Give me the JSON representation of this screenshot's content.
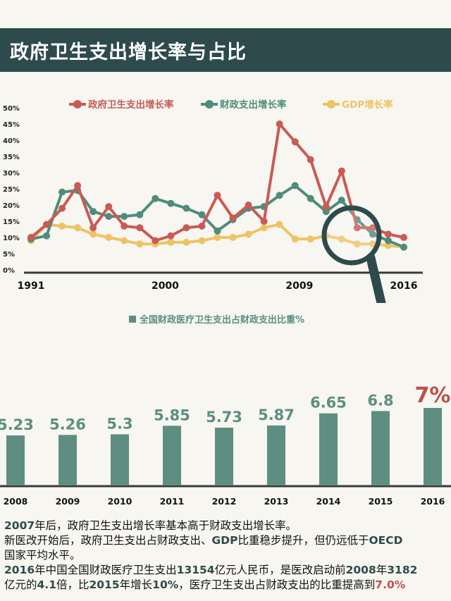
{
  "title": "政府卫生支出增长率与占比",
  "colors": {
    "red": "#c95a55",
    "teal": "#4f8c7c",
    "yellow": "#efc364",
    "bar": "#5e8e82",
    "dark": "#2e4a4c",
    "highlight_red": "#c0504a"
  },
  "chart_data": [
    {
      "type": "line",
      "x_labels": [
        "1991",
        "2000",
        "2009",
        "2016"
      ],
      "ylim": [
        0,
        50
      ],
      "y_ticks": [
        "0%",
        "5%",
        "10%",
        "15%",
        "20%",
        "25%",
        "30%",
        "35%",
        "40%",
        "45%",
        "50%"
      ],
      "legend_position": "top",
      "series": [
        {
          "name": "政府卫生支出增长率",
          "color": "#c95a55",
          "values": [
            10,
            14,
            19,
            26,
            13,
            19.5,
            13.5,
            13,
            9,
            10.5,
            13,
            13.5,
            23,
            16,
            20,
            15,
            45,
            39.5,
            34,
            19.5,
            30.5,
            13,
            13,
            11,
            10
          ]
        },
        {
          "name": "财政支出增长率",
          "color": "#4f8c7c",
          "values": [
            9.5,
            10.5,
            24,
            24.5,
            18,
            16.5,
            16.5,
            17,
            22,
            20.5,
            19,
            17,
            12,
            15.5,
            19,
            19.5,
            23,
            26,
            22,
            18,
            21.5,
            15.5,
            11,
            9,
            7
          ]
        },
        {
          "name": "GDP增长率",
          "color": "#efc364",
          "values": [
            9,
            14,
            13.5,
            13,
            11,
            10,
            9,
            8,
            8,
            8.5,
            8.5,
            9,
            10,
            10,
            11,
            13,
            14,
            9.5,
            9.5,
            10.5,
            9.5,
            8,
            8,
            7.5,
            7
          ]
        }
      ],
      "magnifier_icon": "magnifying-glass"
    },
    {
      "type": "bar",
      "legend": "全国财政医疗卫生支出占财政支出比重%",
      "categories": [
        "2008",
        "2009",
        "2010",
        "2011",
        "2012",
        "2013",
        "2014",
        "2015",
        "2016"
      ],
      "values": [
        5.23,
        5.26,
        5.3,
        5.85,
        5.73,
        5.87,
        6.65,
        6.8,
        7
      ],
      "value_labels": [
        "5.23",
        "5.26",
        "5.3",
        "5.85",
        "5.73",
        "5.87",
        "6.65",
        "6.8",
        "7%"
      ]
    }
  ],
  "notes": [
    [
      {
        "t": "2007",
        "s": "hl"
      },
      {
        "t": "年后，政府卫生支出增长率基本高于财政支出增长率。",
        "s": ""
      }
    ],
    [
      {
        "t": "新医改开始后，政府卫生支出占财政支出、",
        "s": ""
      },
      {
        "t": "GDP",
        "s": "hl"
      },
      {
        "t": "比重稳步提升，但仍远低于",
        "s": ""
      },
      {
        "t": "OECD",
        "s": "hl"
      }
    ],
    [
      {
        "t": "国家平均水平。",
        "s": ""
      }
    ],
    [
      {
        "t": "2016",
        "s": "hl"
      },
      {
        "t": "年中国全国财政医疗卫生支出",
        "s": ""
      },
      {
        "t": "13154",
        "s": "hl"
      },
      {
        "t": "亿元人民币，是医改启动前",
        "s": ""
      },
      {
        "t": "2008",
        "s": "hl"
      },
      {
        "t": "年",
        "s": ""
      },
      {
        "t": "3182",
        "s": "hl"
      }
    ],
    [
      {
        "t": "亿元的",
        "s": ""
      },
      {
        "t": "4.1",
        "s": "hl"
      },
      {
        "t": "倍，比",
        "s": ""
      },
      {
        "t": "2015",
        "s": "hl"
      },
      {
        "t": "年增长",
        "s": ""
      },
      {
        "t": "10%",
        "s": "hl"
      },
      {
        "t": "，医疗卫生支出占财政支出的比重提高到",
        "s": ""
      },
      {
        "t": "7.0%",
        "s": "hl-red"
      }
    ]
  ]
}
